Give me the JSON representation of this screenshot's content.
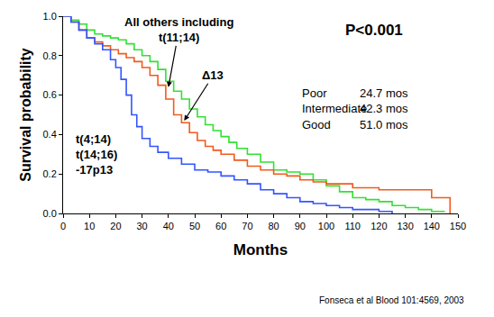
{
  "chart_data": {
    "type": "line",
    "x_label": "Months",
    "y_label": "Survival probability",
    "xlim": [
      0,
      150
    ],
    "ylim": [
      0,
      1
    ],
    "xticks": [
      0,
      10,
      20,
      30,
      40,
      50,
      60,
      70,
      80,
      90,
      100,
      110,
      120,
      130,
      140,
      150
    ],
    "yticks": [
      {
        "value": 0,
        "label": "0.0"
      },
      {
        "value": 0.2,
        "label": "0.2"
      },
      {
        "value": 0.4,
        "label": "0.4"
      },
      {
        "value": 0.6,
        "label": "0.6"
      },
      {
        "value": 0.8,
        "label": "0.8"
      },
      {
        "value": 1,
        "label": "1.0"
      }
    ],
    "grid": false,
    "line_style": "step",
    "series": [
      {
        "name": "All others including\nt(11;14)",
        "color": "#33e033",
        "x": [
          0,
          3,
          6,
          9,
          12,
          15,
          18,
          21,
          24,
          27,
          30,
          33,
          36,
          39,
          42,
          45,
          48,
          51,
          54,
          57,
          60,
          63,
          66,
          70,
          75,
          80,
          85,
          90,
          95,
          100,
          105,
          110,
          115,
          120,
          125,
          130,
          135,
          140,
          145
        ],
        "values": [
          1.0,
          0.98,
          0.96,
          0.93,
          0.91,
          0.9,
          0.89,
          0.88,
          0.86,
          0.83,
          0.8,
          0.77,
          0.73,
          0.67,
          0.62,
          0.58,
          0.53,
          0.49,
          0.45,
          0.42,
          0.39,
          0.36,
          0.33,
          0.3,
          0.26,
          0.22,
          0.21,
          0.2,
          0.17,
          0.14,
          0.11,
          0.08,
          0.07,
          0.06,
          0.04,
          0.03,
          0.02,
          0.01,
          0.01
        ]
      },
      {
        "name": "Δ13",
        "color": "#f25a1e",
        "x": [
          0,
          3,
          6,
          9,
          12,
          15,
          18,
          21,
          24,
          27,
          30,
          33,
          36,
          39,
          42,
          45,
          48,
          51,
          54,
          57,
          60,
          65,
          70,
          75,
          80,
          85,
          90,
          95,
          100,
          110,
          120,
          130,
          140,
          147
        ],
        "values": [
          1.0,
          0.97,
          0.93,
          0.89,
          0.87,
          0.85,
          0.83,
          0.81,
          0.79,
          0.77,
          0.74,
          0.7,
          0.65,
          0.58,
          0.5,
          0.46,
          0.41,
          0.37,
          0.34,
          0.32,
          0.3,
          0.27,
          0.24,
          0.22,
          0.2,
          0.19,
          0.17,
          0.16,
          0.15,
          0.13,
          0.12,
          0.12,
          0.08,
          0.0
        ]
      },
      {
        "name": "t(4;14)\nt(14;16)\n-17p13",
        "color": "#3355ff",
        "x": [
          0,
          3,
          6,
          9,
          12,
          15,
          18,
          20,
          22,
          24,
          26,
          28,
          30,
          33,
          36,
          40,
          45,
          50,
          55,
          60,
          65,
          70,
          75,
          80,
          85,
          90,
          95,
          100,
          105,
          110,
          115,
          120,
          125
        ],
        "values": [
          1.0,
          0.97,
          0.93,
          0.89,
          0.86,
          0.83,
          0.78,
          0.74,
          0.68,
          0.6,
          0.5,
          0.44,
          0.38,
          0.34,
          0.31,
          0.28,
          0.25,
          0.22,
          0.21,
          0.19,
          0.17,
          0.15,
          0.12,
          0.1,
          0.08,
          0.06,
          0.05,
          0.04,
          0.03,
          0.02,
          0.02,
          0.01,
          0.0
        ]
      }
    ],
    "annotations": [
      "P<0.001"
    ],
    "medians": [
      {
        "label": "Poor",
        "text": "24.7 mos"
      },
      {
        "label": "Intermediate",
        "text": "42.3 mos"
      },
      {
        "label": "Good",
        "text": "51.0 mos"
      }
    ],
    "source": "Fonseca et al Blood 101:4569, 2003"
  }
}
